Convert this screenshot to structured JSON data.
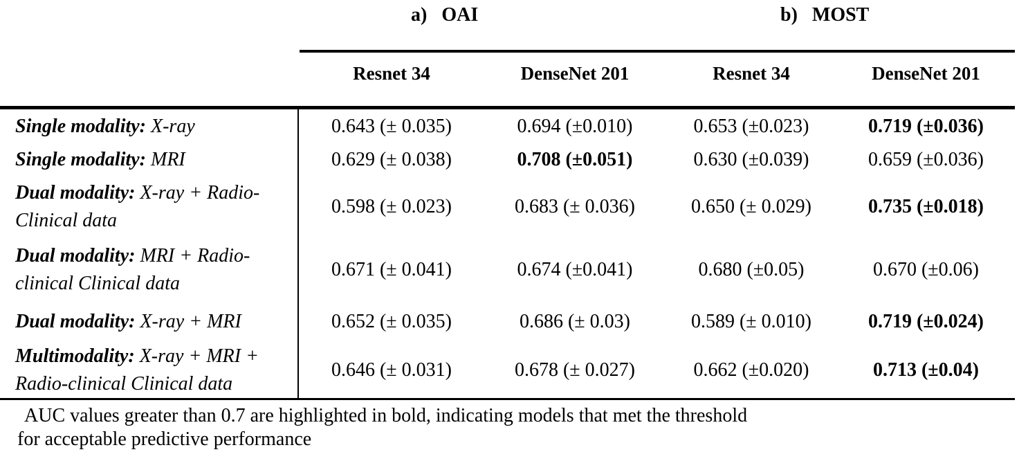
{
  "table": {
    "group_headers": [
      {
        "prefix": "a)",
        "label": "OAI"
      },
      {
        "prefix": "b)",
        "label": "MOST"
      }
    ],
    "column_headers": [
      "Resnet 34",
      "DenseNet 201",
      "Resnet 34",
      "DenseNet 201"
    ],
    "rows": [
      {
        "label_prefix": "Single modality:",
        "label_rest": " X-ray",
        "values": [
          {
            "text": "0.643 (± 0.035)",
            "bold": false
          },
          {
            "text": "0.694 (±0.010)",
            "bold": false
          },
          {
            "text": "0.653 (±0.023)",
            "bold": false
          },
          {
            "text": "0.719 (±0.036)",
            "bold": true
          }
        ]
      },
      {
        "label_prefix": "Single modality:",
        "label_rest": " MRI",
        "values": [
          {
            "text": "0.629 (± 0.038)",
            "bold": false
          },
          {
            "text": "0.708 (±0.051)",
            "bold": true
          },
          {
            "text": "0.630 (±0.039)",
            "bold": false
          },
          {
            "text": "0.659 (±0.036)",
            "bold": false
          }
        ]
      },
      {
        "label_prefix": "Dual modality:",
        "label_rest": " X-ray + Radio-Clinical data",
        "values": [
          {
            "text": "0.598 (± 0.023)",
            "bold": false
          },
          {
            "text": "0.683 (± 0.036)",
            "bold": false
          },
          {
            "text": "0.650 (± 0.029)",
            "bold": false
          },
          {
            "text": "0.735 (±0.018)",
            "bold": true
          }
        ]
      },
      {
        "label_prefix": "Dual modality:",
        "label_rest": " MRI + Radio-clinical Clinical data",
        "values": [
          {
            "text": "0.671 (± 0.041)",
            "bold": false
          },
          {
            "text": "0.674 (±0.041)",
            "bold": false
          },
          {
            "text": "0.680 (±0.05)",
            "bold": false
          },
          {
            "text": "0.670 (±0.06)",
            "bold": false
          }
        ]
      },
      {
        "label_prefix": "Dual modality:",
        "label_rest": " X-ray + MRI",
        "values": [
          {
            "text": "0.652 (± 0.035)",
            "bold": false
          },
          {
            "text": "0.686 (± 0.03)",
            "bold": false
          },
          {
            "text": "0.589 (± 0.010)",
            "bold": false
          },
          {
            "text": "0.719 (±0.024)",
            "bold": true
          }
        ]
      },
      {
        "label_prefix": "Multimodality:",
        "label_rest": " X-ray + MRI + Radio-clinical Clinical data",
        "values": [
          {
            "text": "0.646 (± 0.031)",
            "bold": false
          },
          {
            "text": "0.678 (± 0.027)",
            "bold": false
          },
          {
            "text": "0.662 (±0.020)",
            "bold": false
          },
          {
            "text": "0.713 (±0.04)",
            "bold": true
          }
        ]
      }
    ],
    "footnote_lines": [
      "AUC values greater than 0.7 are highlighted in bold, indicating models that met the threshold",
      "for acceptable predictive performance"
    ]
  },
  "colors": {
    "text": "#000000",
    "background": "#ffffff",
    "rule": "#000000"
  }
}
